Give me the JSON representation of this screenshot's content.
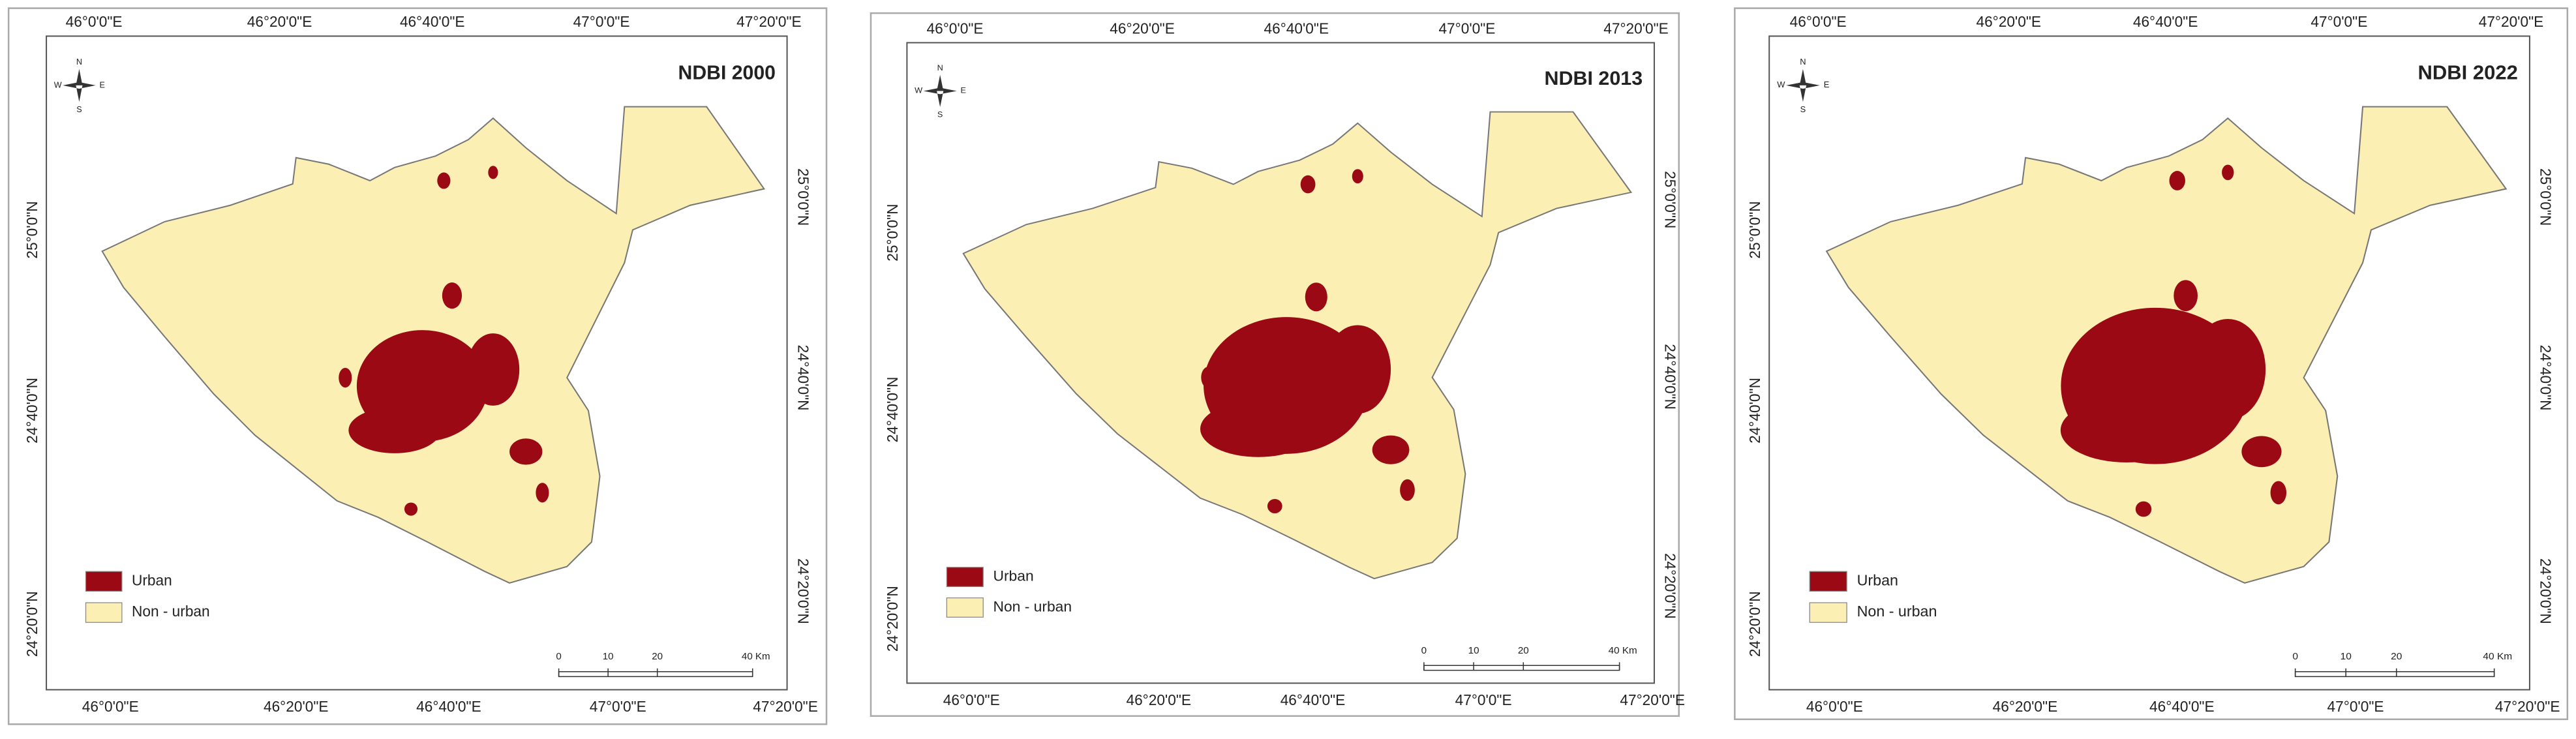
{
  "panels": [
    {
      "title": "NDBI 2000"
    },
    {
      "title": "NDBI 2013"
    },
    {
      "title": "NDBI 2022"
    }
  ],
  "lon_labels": [
    "46°0'0\"E",
    "46°20'0\"E",
    "46°40'0\"E",
    "47°0'0\"E",
    "47°20'0\"E"
  ],
  "lat_labels": [
    "25°0'0\"N",
    "24°40'0\"N",
    "24°20'0\"N"
  ],
  "compass": {
    "n": "N",
    "s": "S",
    "e": "E",
    "w": "W"
  },
  "legend": [
    "Urban",
    "Non - urban"
  ],
  "scale_labels": [
    "0",
    "10",
    "20",
    "40 Km"
  ]
}
